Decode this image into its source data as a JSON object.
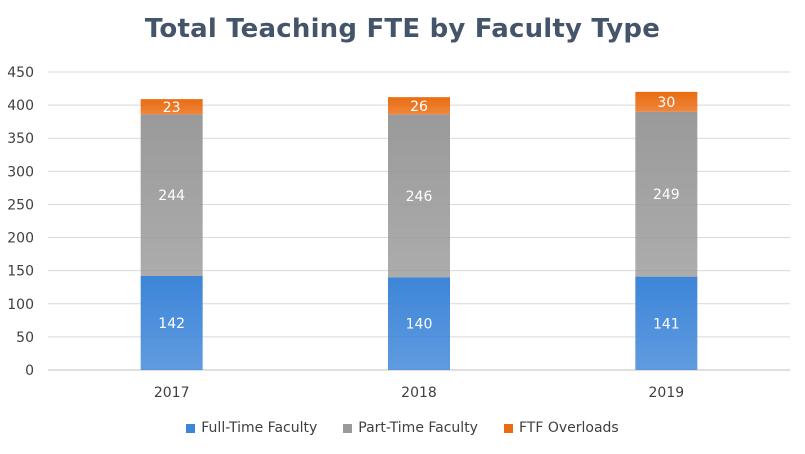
{
  "chart_data": {
    "type": "bar",
    "stacked": true,
    "title": "Total Teaching FTE by Faculty Type",
    "xlabel": "",
    "ylabel": "",
    "categories": [
      "2017",
      "2018",
      "2019"
    ],
    "ylim": [
      0,
      450
    ],
    "yticks": [
      "0",
      "50",
      "100",
      "150",
      "200",
      "250",
      "300",
      "350",
      "400",
      "450"
    ],
    "grid": true,
    "legend_position": "bottom",
    "series": [
      {
        "name": "Full-Time Faculty",
        "values": [
          142,
          140,
          141
        ],
        "labels": [
          "142",
          "140",
          "141"
        ],
        "color": "#3d85d8"
      },
      {
        "name": "Part-Time Faculty",
        "values": [
          244,
          246,
          249
        ],
        "labels": [
          "244",
          "246",
          "249"
        ],
        "color": "#9a9a9a"
      },
      {
        "name": "FTF Overloads",
        "values": [
          23,
          26,
          30
        ],
        "labels": [
          "23",
          "26",
          "30"
        ],
        "color": "#ea6c12"
      }
    ]
  }
}
